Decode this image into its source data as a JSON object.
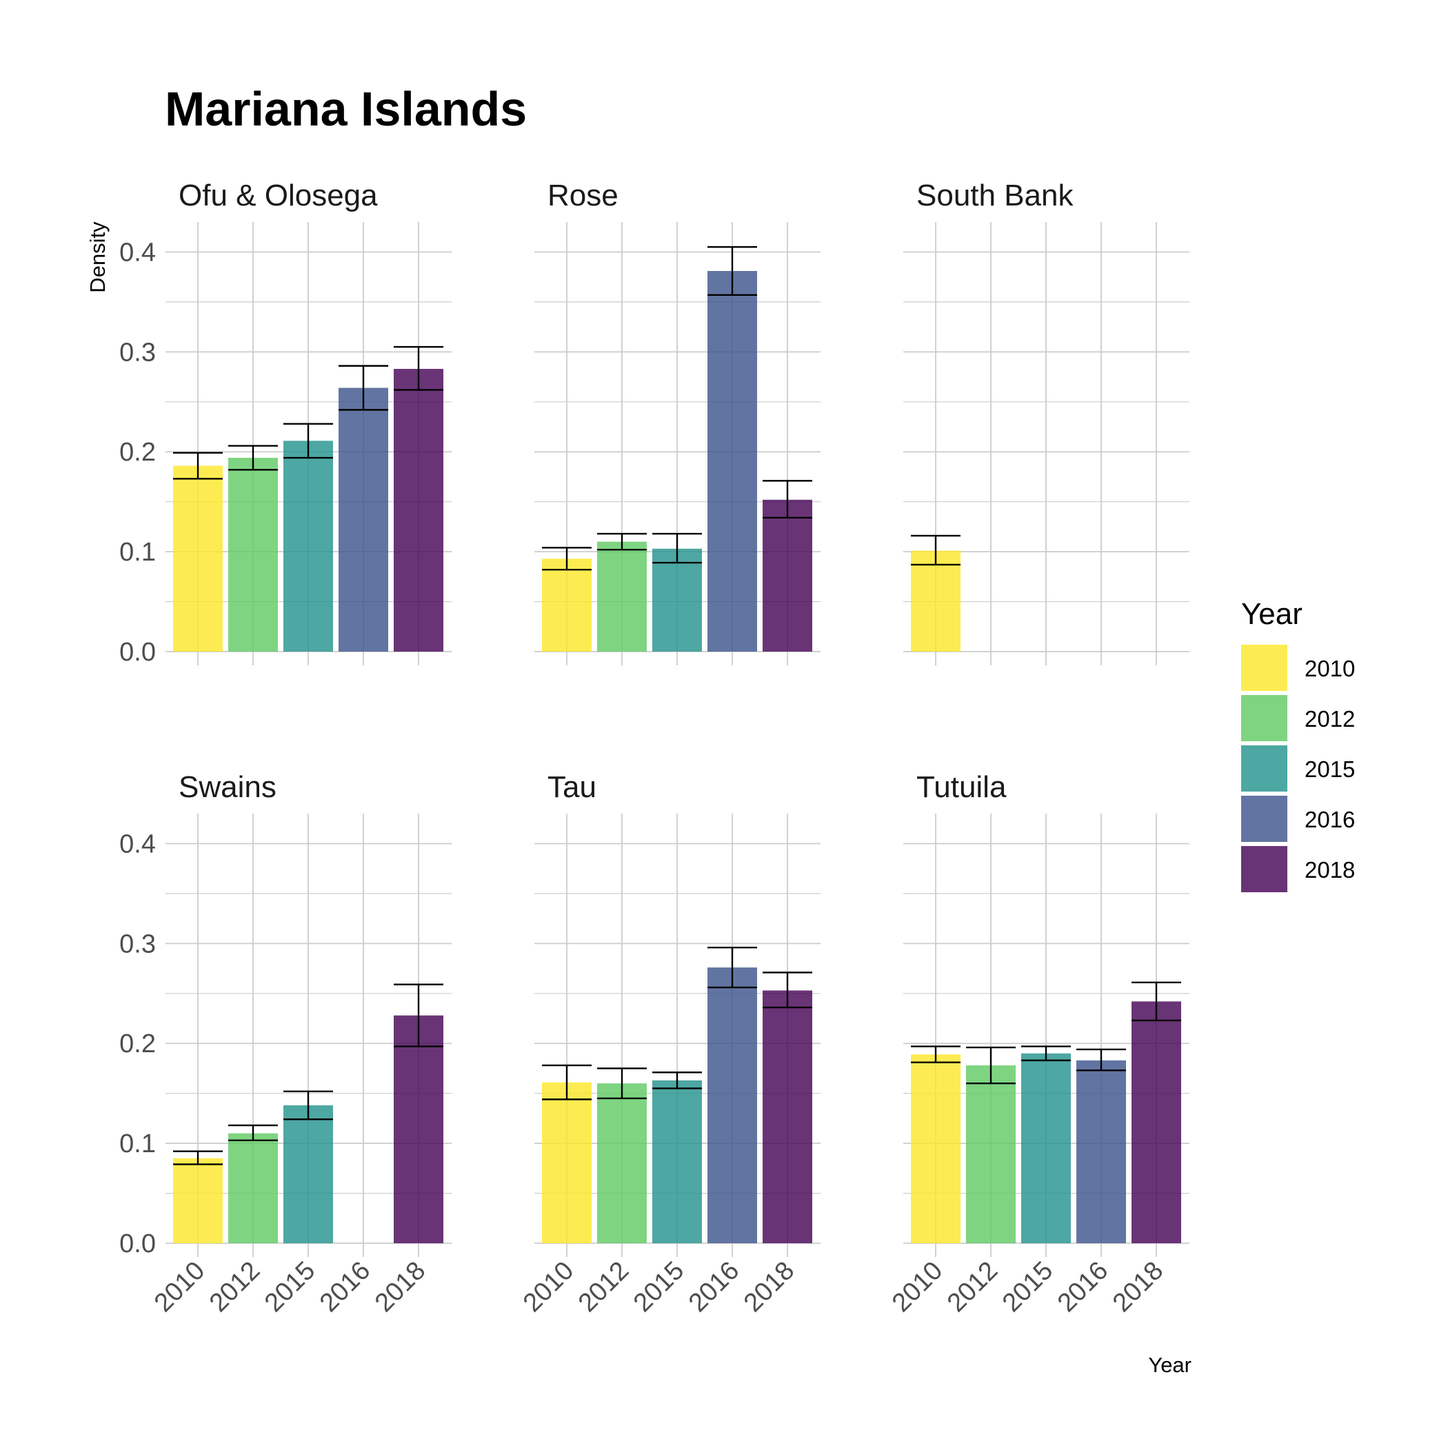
{
  "chart_data": {
    "type": "bar",
    "title": "Mariana Islands",
    "xlabel": "Year",
    "ylabel": "Density",
    "ylim": [
      0,
      0.43
    ],
    "yticks": [
      "0.0",
      "0.1",
      "0.2",
      "0.3",
      "0.4"
    ],
    "categories": [
      "2010",
      "2012",
      "2015",
      "2016",
      "2018"
    ],
    "colors": {
      "2010": "#FDE725",
      "2012": "#5EC962",
      "2015": "#21918C",
      "2016": "#3B528B",
      "2018": "#440154"
    },
    "bar_opacity": 0.8,
    "grid": true,
    "legend": {
      "title": "Year",
      "position": "right",
      "entries": [
        "2010",
        "2012",
        "2015",
        "2016",
        "2018"
      ]
    },
    "facets": [
      {
        "name": "Ofu & Olosega",
        "bars": [
          {
            "year": "2010",
            "value": 0.186,
            "lower": 0.173,
            "upper": 0.199
          },
          {
            "year": "2012",
            "value": 0.194,
            "lower": 0.182,
            "upper": 0.206
          },
          {
            "year": "2015",
            "value": 0.211,
            "lower": 0.194,
            "upper": 0.228
          },
          {
            "year": "2016",
            "value": 0.264,
            "lower": 0.242,
            "upper": 0.286
          },
          {
            "year": "2018",
            "value": 0.283,
            "lower": 0.262,
            "upper": 0.305
          }
        ]
      },
      {
        "name": "Rose",
        "bars": [
          {
            "year": "2010",
            "value": 0.093,
            "lower": 0.082,
            "upper": 0.104
          },
          {
            "year": "2012",
            "value": 0.11,
            "lower": 0.102,
            "upper": 0.118
          },
          {
            "year": "2015",
            "value": 0.103,
            "lower": 0.089,
            "upper": 0.118
          },
          {
            "year": "2016",
            "value": 0.381,
            "lower": 0.357,
            "upper": 0.405
          },
          {
            "year": "2018",
            "value": 0.152,
            "lower": 0.134,
            "upper": 0.171
          }
        ]
      },
      {
        "name": "South Bank",
        "bars": [
          {
            "year": "2010",
            "value": 0.101,
            "lower": 0.087,
            "upper": 0.116
          }
        ]
      },
      {
        "name": "Swains",
        "bars": [
          {
            "year": "2010",
            "value": 0.085,
            "lower": 0.079,
            "upper": 0.092
          },
          {
            "year": "2012",
            "value": 0.11,
            "lower": 0.103,
            "upper": 0.118
          },
          {
            "year": "2015",
            "value": 0.138,
            "lower": 0.124,
            "upper": 0.152
          },
          {
            "year": "2018",
            "value": 0.228,
            "lower": 0.197,
            "upper": 0.259
          }
        ]
      },
      {
        "name": "Tau",
        "bars": [
          {
            "year": "2010",
            "value": 0.161,
            "lower": 0.144,
            "upper": 0.178
          },
          {
            "year": "2012",
            "value": 0.16,
            "lower": 0.145,
            "upper": 0.175
          },
          {
            "year": "2015",
            "value": 0.163,
            "lower": 0.155,
            "upper": 0.171
          },
          {
            "year": "2016",
            "value": 0.276,
            "lower": 0.256,
            "upper": 0.296
          },
          {
            "year": "2018",
            "value": 0.253,
            "lower": 0.236,
            "upper": 0.271
          }
        ]
      },
      {
        "name": "Tutuila",
        "bars": [
          {
            "year": "2010",
            "value": 0.189,
            "lower": 0.181,
            "upper": 0.197
          },
          {
            "year": "2012",
            "value": 0.178,
            "lower": 0.16,
            "upper": 0.196
          },
          {
            "year": "2015",
            "value": 0.19,
            "lower": 0.183,
            "upper": 0.197
          },
          {
            "year": "2016",
            "value": 0.183,
            "lower": 0.173,
            "upper": 0.194
          },
          {
            "year": "2018",
            "value": 0.242,
            "lower": 0.223,
            "upper": 0.261
          }
        ]
      }
    ]
  }
}
